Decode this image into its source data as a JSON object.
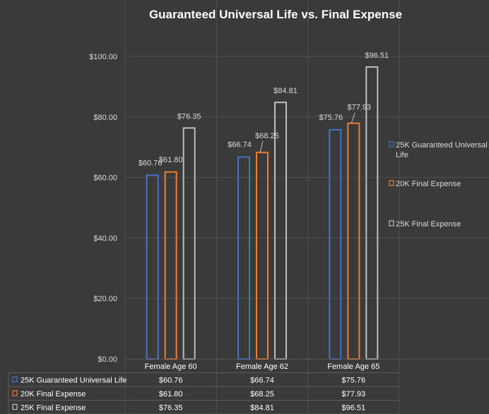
{
  "chart_data": {
    "type": "bar",
    "title": "Guaranteed Universal Life vs. Final Expense",
    "categories": [
      "Female Age 60",
      "Female Age 62",
      "Female Age 65"
    ],
    "series": [
      {
        "name": "25K Guaranteed Universal Life",
        "color": "#4472c4",
        "values": [
          60.76,
          66.74,
          75.76
        ],
        "labels": [
          "$60.76",
          "$66.74",
          "$75.76"
        ]
      },
      {
        "name": "20K Final Expense",
        "color": "#ed7d31",
        "values": [
          61.8,
          68.25,
          77.93
        ],
        "labels": [
          "$61.80",
          "$68.25",
          "$77.93"
        ]
      },
      {
        "name": "25K Final Expense",
        "color": "#bfbfbf",
        "values": [
          76.35,
          84.81,
          96.51
        ],
        "labels": [
          "$76.35",
          "$84.81",
          "$96.51"
        ]
      }
    ],
    "ylim": [
      0,
      100
    ],
    "yticks": [
      "$0.00",
      "$20.00",
      "$40.00",
      "$60.00",
      "$80.00",
      "$100.00"
    ],
    "ytick_values": [
      0,
      20,
      40,
      60,
      80,
      100
    ],
    "legend_position": "right",
    "data_table": true,
    "gridlines": true
  }
}
